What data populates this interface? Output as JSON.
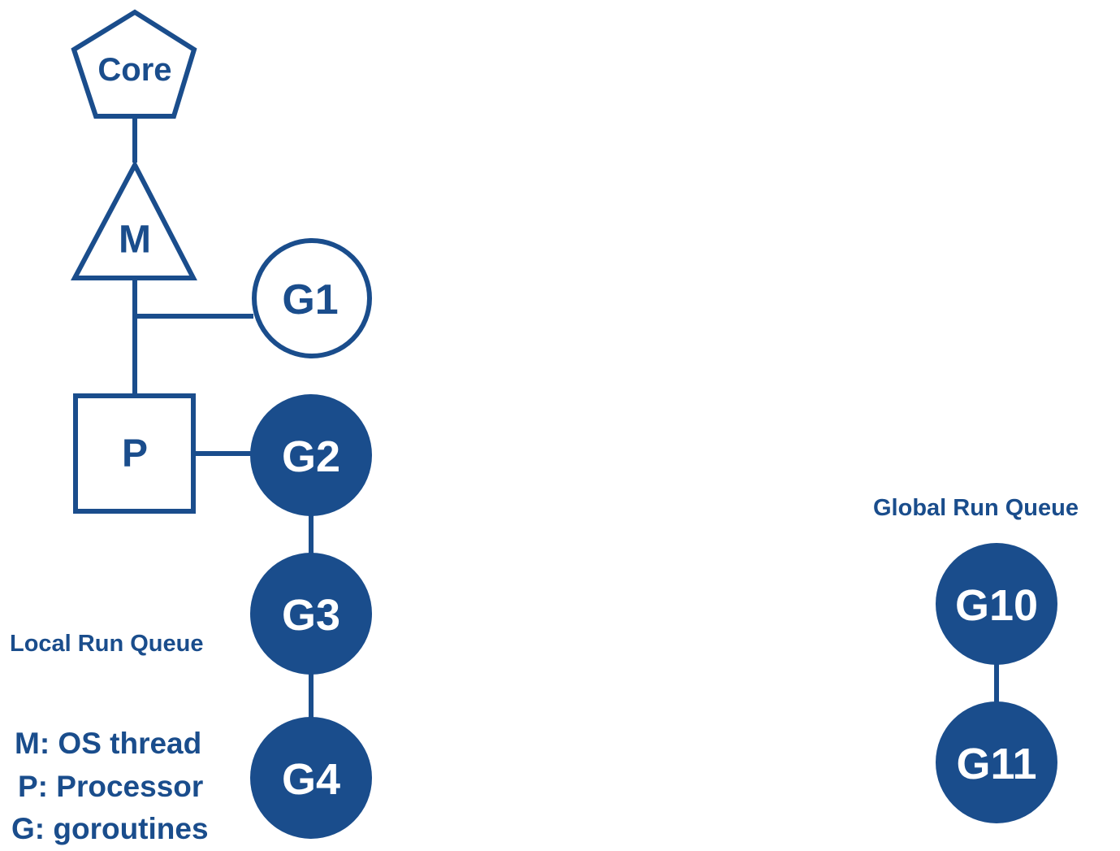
{
  "colors": {
    "primary": "#1a4d8c",
    "background": "#ffffff"
  },
  "nodes": {
    "core": "Core",
    "m": "M",
    "g1": "G1",
    "p": "P",
    "g2": "G2",
    "g3": "G3",
    "g4": "G4",
    "g10": "G10",
    "g11": "G11"
  },
  "labels": {
    "local_run_queue": "Local Run Queue",
    "global_run_queue": "Global Run Queue"
  },
  "legend": [
    "M: OS thread",
    "P: Processor",
    "G: goroutines"
  ]
}
